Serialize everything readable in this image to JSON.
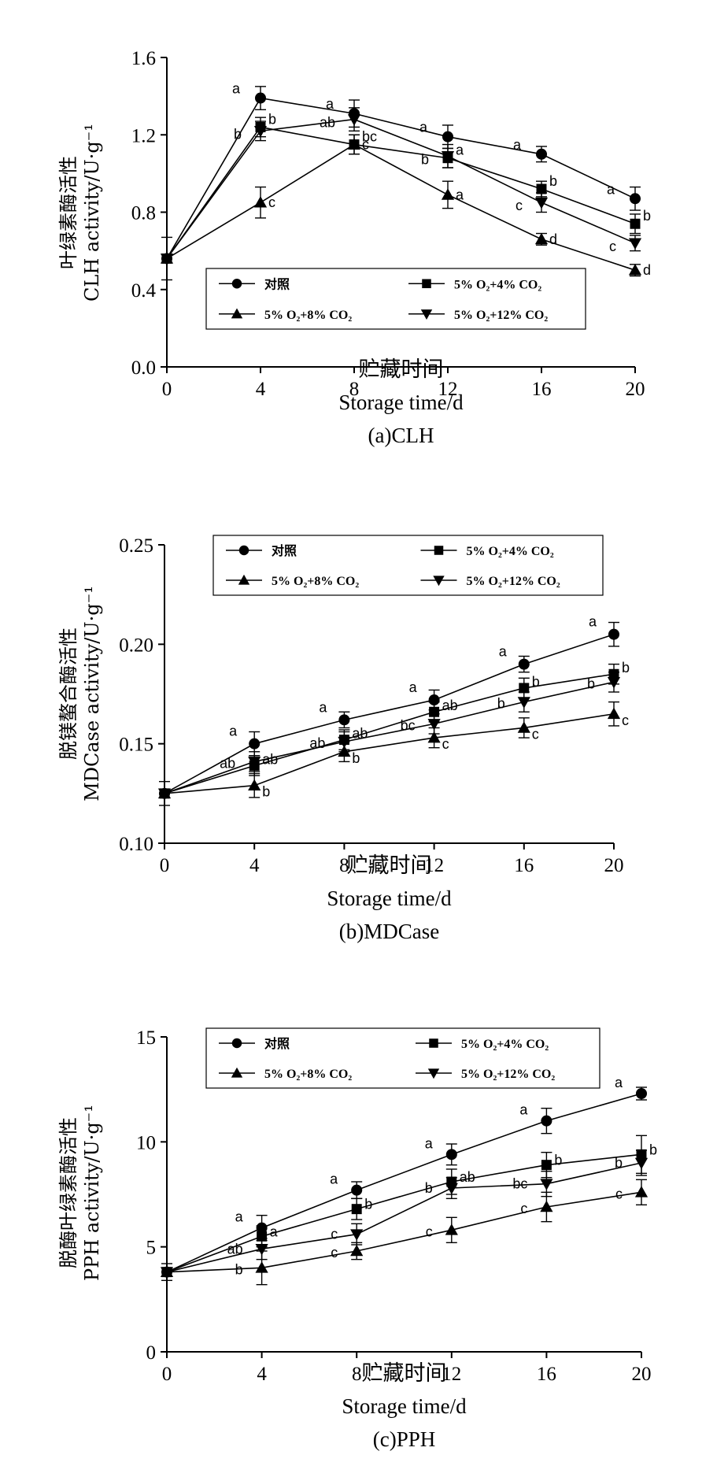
{
  "chart_data": [
    {
      "type": "line",
      "caption": "(a)CLH",
      "xlabel_cn": "贮藏时间",
      "xlabel_en": "Storage time/d",
      "ylabel_cn": "叶绿素酶活性",
      "ylabel_en": "CLH activity/U·g⁻¹",
      "x": [
        0,
        4,
        8,
        12,
        16,
        20
      ],
      "xlim": [
        0,
        20
      ],
      "ylim": [
        0,
        1.6
      ],
      "yticks": [
        0.0,
        0.4,
        0.8,
        1.2,
        1.6
      ],
      "ytick_labels": [
        "0.0",
        "0.4",
        "0.8",
        "1.2",
        "1.6"
      ],
      "xtick_labels": [
        "0",
        "4",
        "8",
        "12",
        "16",
        "20"
      ],
      "legend": "inside-bottom",
      "series": [
        {
          "name": "对照",
          "marker": "circle",
          "values": [
            0.56,
            1.39,
            1.31,
            1.19,
            1.1,
            0.87
          ],
          "errors": [
            0.11,
            0.06,
            0.07,
            0.06,
            0.04,
            0.06
          ],
          "letters": [
            "",
            "a",
            "a",
            "a",
            "a",
            "a"
          ]
        },
        {
          "name": "5% O₂+4% CO₂",
          "marker": "square",
          "values": [
            0.56,
            1.24,
            1.15,
            1.08,
            0.92,
            0.74
          ],
          "errors": [
            0,
            0.05,
            0.05,
            0.05,
            0.04,
            0.05
          ],
          "letters": [
            "",
            "b",
            "bc",
            "a",
            "b",
            "b"
          ]
        },
        {
          "name": "5% O₂+8% CO₂",
          "marker": "triangle-up",
          "values": [
            0.56,
            0.85,
            1.15,
            0.89,
            0.66,
            0.5
          ],
          "errors": [
            0,
            0.08,
            0.05,
            0.07,
            0.03,
            0.03
          ],
          "letters": [
            "",
            "c",
            "c",
            "a",
            "d",
            "d"
          ]
        },
        {
          "name": "5% O₂+12% CO₂",
          "marker": "triangle-down",
          "values": [
            0.56,
            1.22,
            1.28,
            1.09,
            0.85,
            0.64
          ],
          "errors": [
            0,
            0.05,
            0.06,
            0.06,
            0.05,
            0.04
          ],
          "letters": [
            "",
            "b",
            "ab",
            "b",
            "c",
            "c"
          ]
        }
      ]
    },
    {
      "type": "line",
      "caption": "(b)MDCase",
      "xlabel_cn": "贮藏时间",
      "xlabel_en": "Storage time/d",
      "ylabel_cn": "脱镁螯合酶活性",
      "ylabel_en": "MDCase activity/U·g⁻¹",
      "x": [
        0,
        4,
        8,
        12,
        16,
        20
      ],
      "xlim": [
        0,
        20
      ],
      "ylim": [
        0.1,
        0.25
      ],
      "yticks": [
        0.1,
        0.15,
        0.2,
        0.25
      ],
      "ytick_labels": [
        "0.10",
        "0.15",
        "0.20",
        "0.25"
      ],
      "xtick_labels": [
        "0",
        "4",
        "8",
        "12",
        "16",
        "20"
      ],
      "legend": "top",
      "series": [
        {
          "name": "对照",
          "marker": "circle",
          "values": [
            0.125,
            0.15,
            0.162,
            0.172,
            0.19,
            0.205
          ],
          "errors": [
            0.006,
            0.006,
            0.004,
            0.005,
            0.004,
            0.006
          ],
          "letters": [
            "",
            "a",
            "a",
            "a",
            "a",
            "a"
          ]
        },
        {
          "name": "5% O₂+4% CO₂",
          "marker": "square",
          "values": [
            0.125,
            0.139,
            0.152,
            0.166,
            0.178,
            0.185
          ],
          "errors": [
            0,
            0.005,
            0.005,
            0.005,
            0.005,
            0.005
          ],
          "letters": [
            "",
            "ab",
            "ab",
            "ab",
            "b",
            "b"
          ]
        },
        {
          "name": "5% O₂+8% CO₂",
          "marker": "triangle-up",
          "values": [
            0.125,
            0.129,
            0.146,
            0.153,
            0.158,
            0.165
          ],
          "errors": [
            0,
            0.006,
            0.005,
            0.005,
            0.005,
            0.006
          ],
          "letters": [
            "",
            "b",
            "b",
            "c",
            "c",
            "c"
          ]
        },
        {
          "name": "5% O₂+12% CO₂",
          "marker": "triangle-down",
          "values": [
            0.125,
            0.141,
            0.151,
            0.16,
            0.171,
            0.181
          ],
          "errors": [
            0,
            0.005,
            0.005,
            0.005,
            0.005,
            0.005
          ],
          "letters": [
            "",
            "ab",
            "ab",
            "bc",
            "b",
            "b"
          ]
        }
      ]
    },
    {
      "type": "line",
      "caption": "(c)PPH",
      "xlabel_cn": "贮藏时间",
      "xlabel_en": "Storage time/d",
      "ylabel_cn": "脱酶叶绿素酶活性",
      "ylabel_en": "PPH activity/U·g⁻¹",
      "x": [
        0,
        4,
        8,
        12,
        16,
        20
      ],
      "xlim": [
        0,
        20
      ],
      "ylim": [
        0,
        15
      ],
      "yticks": [
        0,
        5,
        10,
        15
      ],
      "ytick_labels": [
        "0",
        "5",
        "10",
        "15"
      ],
      "xtick_labels": [
        "0",
        "4",
        "8",
        "12",
        "16",
        "20"
      ],
      "legend": "top",
      "series": [
        {
          "name": "对照",
          "marker": "circle",
          "values": [
            3.8,
            5.9,
            7.7,
            9.4,
            11.0,
            12.3
          ],
          "errors": [
            0.4,
            0.6,
            0.4,
            0.5,
            0.6,
            0.3
          ],
          "letters": [
            "",
            "a",
            "a",
            "a",
            "a",
            "a"
          ]
        },
        {
          "name": "5% O₂+4% CO₂",
          "marker": "square",
          "values": [
            3.8,
            5.5,
            6.8,
            8.1,
            8.9,
            9.4
          ],
          "errors": [
            0,
            0.5,
            0.5,
            0.6,
            0.6,
            0.9
          ],
          "letters": [
            "",
            "a",
            "b",
            "ab",
            "b",
            "b"
          ]
        },
        {
          "name": "5% O₂+8% CO₂",
          "marker": "triangle-up",
          "values": [
            3.8,
            4.0,
            4.8,
            5.8,
            6.9,
            7.6
          ],
          "errors": [
            0,
            0.8,
            0.4,
            0.6,
            0.7,
            0.6
          ],
          "letters": [
            "",
            "b",
            "c",
            "c",
            "c",
            "c"
          ]
        },
        {
          "name": "5% O₂+12% CO₂",
          "marker": "triangle-down",
          "values": [
            3.8,
            4.9,
            5.6,
            7.8,
            8.0,
            9.0
          ],
          "errors": [
            0,
            0.5,
            0.5,
            0.5,
            0.6,
            0.6
          ],
          "letters": [
            "",
            "ab",
            "c",
            "b",
            "bc",
            "b"
          ]
        }
      ]
    }
  ]
}
